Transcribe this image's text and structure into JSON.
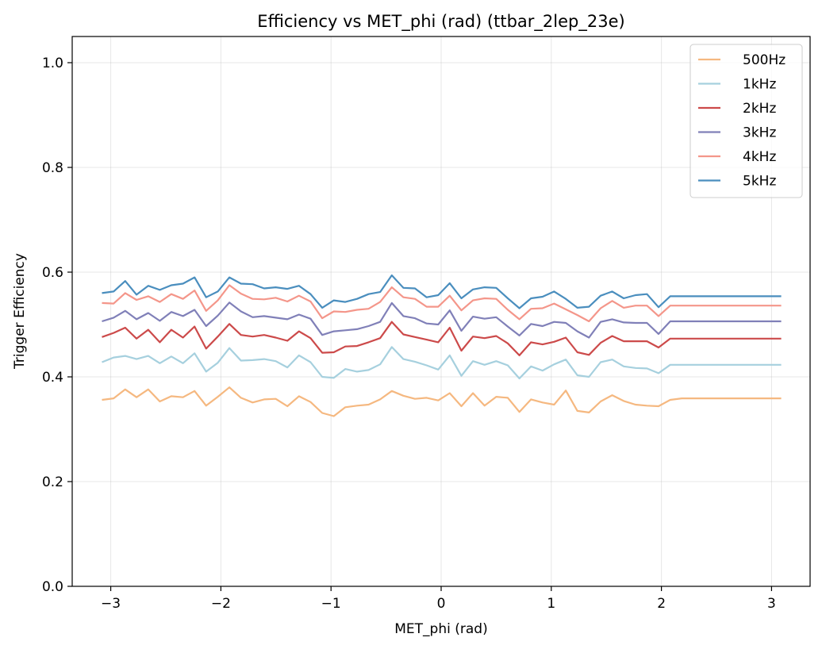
{
  "chart_data": {
    "type": "line",
    "title": "Efficiency vs MET_phi (rad) (ttbar_2lep_23e)",
    "xlabel": "MET_phi (rad)",
    "ylabel": "Trigger Efficiency",
    "xlim": [
      -3.35,
      3.35
    ],
    "ylim": [
      0.0,
      1.05
    ],
    "xticks": [
      -3,
      -2,
      -1,
      0,
      1,
      2,
      3
    ],
    "xtick_labels": [
      "−3",
      "−2",
      "−1",
      "0",
      "1",
      "2",
      "3"
    ],
    "yticks": [
      0.0,
      0.2,
      0.4,
      0.6,
      0.8,
      1.0
    ],
    "ytick_labels": [
      "0.0",
      "0.2",
      "0.4",
      "0.6",
      "0.8",
      "1.0"
    ],
    "grid": true,
    "legend_position": "top-right",
    "x": [
      -3.08,
      -2.974,
      -2.869,
      -2.766,
      -2.66,
      -2.555,
      -2.45,
      -2.344,
      -2.239,
      -2.134,
      -2.028,
      -1.923,
      -1.818,
      -1.712,
      -1.607,
      -1.502,
      -1.396,
      -1.291,
      -1.186,
      -1.08,
      -0.975,
      -0.87,
      -0.764,
      -0.659,
      -0.554,
      -0.448,
      -0.343,
      -0.238,
      -0.132,
      -0.027,
      0.078,
      0.184,
      0.289,
      0.394,
      0.5,
      0.605,
      0.71,
      0.816,
      0.921,
      1.026,
      1.132,
      1.237,
      1.342,
      1.448,
      1.553,
      1.658,
      1.764,
      1.869,
      1.974,
      2.08,
      2.185,
      2.29,
      2.396,
      2.501,
      2.606,
      2.712,
      2.817,
      2.922,
      3.028,
      3.088
    ],
    "series": [
      {
        "name": "500Hz",
        "color": "#f5b880",
        "values": [
          0.356,
          0.359,
          0.376,
          0.361,
          0.376,
          0.353,
          0.363,
          0.361,
          0.373,
          0.345,
          0.362,
          0.38,
          0.36,
          0.351,
          0.357,
          0.358,
          0.344,
          0.363,
          0.352,
          0.331,
          0.325,
          0.342,
          0.345,
          0.347,
          0.357,
          0.373,
          0.364,
          0.358,
          0.36,
          0.355,
          0.369,
          0.344,
          0.369,
          0.345,
          0.362,
          0.36,
          0.333,
          0.357,
          0.351,
          0.347,
          0.374,
          0.335,
          0.332,
          0.353,
          0.365,
          0.354,
          0.347,
          0.345,
          0.344,
          0.356,
          0.359,
          0.359,
          0.359,
          0.359,
          0.359,
          0.359,
          0.359,
          0.359,
          0.359,
          0.359
        ]
      },
      {
        "name": "1kHz",
        "color": "#a6d0de",
        "values": [
          0.428,
          0.437,
          0.44,
          0.434,
          0.44,
          0.426,
          0.439,
          0.426,
          0.445,
          0.41,
          0.427,
          0.455,
          0.431,
          0.432,
          0.434,
          0.43,
          0.418,
          0.441,
          0.428,
          0.4,
          0.398,
          0.415,
          0.41,
          0.413,
          0.424,
          0.457,
          0.434,
          0.429,
          0.422,
          0.414,
          0.441,
          0.402,
          0.43,
          0.423,
          0.43,
          0.422,
          0.397,
          0.42,
          0.412,
          0.424,
          0.433,
          0.403,
          0.4,
          0.428,
          0.433,
          0.42,
          0.417,
          0.416,
          0.407,
          0.423,
          0.423,
          0.423,
          0.423,
          0.423,
          0.423,
          0.423,
          0.423,
          0.423,
          0.423,
          0.423
        ]
      },
      {
        "name": "2kHz",
        "color": "#cc4a4a",
        "values": [
          0.476,
          0.484,
          0.494,
          0.473,
          0.49,
          0.466,
          0.49,
          0.475,
          0.496,
          0.454,
          0.477,
          0.501,
          0.48,
          0.477,
          0.48,
          0.475,
          0.469,
          0.487,
          0.474,
          0.446,
          0.447,
          0.458,
          0.459,
          0.466,
          0.474,
          0.505,
          0.481,
          0.476,
          0.471,
          0.466,
          0.494,
          0.45,
          0.477,
          0.474,
          0.478,
          0.464,
          0.441,
          0.466,
          0.462,
          0.467,
          0.475,
          0.447,
          0.442,
          0.465,
          0.478,
          0.468,
          0.468,
          0.468,
          0.456,
          0.473,
          0.473,
          0.473,
          0.473,
          0.473,
          0.473,
          0.473,
          0.473,
          0.473,
          0.473,
          0.473
        ]
      },
      {
        "name": "3kHz",
        "color": "#8080b8",
        "values": [
          0.506,
          0.513,
          0.526,
          0.51,
          0.522,
          0.507,
          0.524,
          0.516,
          0.528,
          0.497,
          0.517,
          0.542,
          0.525,
          0.514,
          0.516,
          0.513,
          0.51,
          0.519,
          0.511,
          0.48,
          0.487,
          0.489,
          0.491,
          0.497,
          0.505,
          0.541,
          0.516,
          0.512,
          0.502,
          0.5,
          0.527,
          0.488,
          0.515,
          0.511,
          0.514,
          0.496,
          0.479,
          0.501,
          0.497,
          0.505,
          0.503,
          0.487,
          0.475,
          0.505,
          0.51,
          0.504,
          0.503,
          0.503,
          0.482,
          0.506,
          0.506,
          0.506,
          0.506,
          0.506,
          0.506,
          0.506,
          0.506,
          0.506,
          0.506,
          0.506
        ]
      },
      {
        "name": "4kHz",
        "color": "#f4968a",
        "values": [
          0.541,
          0.54,
          0.56,
          0.547,
          0.554,
          0.543,
          0.558,
          0.549,
          0.565,
          0.526,
          0.546,
          0.575,
          0.559,
          0.549,
          0.548,
          0.551,
          0.544,
          0.555,
          0.544,
          0.512,
          0.525,
          0.524,
          0.528,
          0.53,
          0.543,
          0.571,
          0.552,
          0.549,
          0.534,
          0.534,
          0.555,
          0.527,
          0.546,
          0.55,
          0.549,
          0.528,
          0.51,
          0.53,
          0.531,
          0.54,
          0.529,
          0.518,
          0.506,
          0.531,
          0.545,
          0.532,
          0.536,
          0.536,
          0.516,
          0.536,
          0.536,
          0.536,
          0.536,
          0.536,
          0.536,
          0.536,
          0.536,
          0.536,
          0.536,
          0.536
        ]
      },
      {
        "name": "5kHz",
        "color": "#4a8ebe",
        "values": [
          0.56,
          0.563,
          0.583,
          0.557,
          0.574,
          0.566,
          0.575,
          0.578,
          0.59,
          0.552,
          0.563,
          0.59,
          0.578,
          0.577,
          0.569,
          0.571,
          0.568,
          0.574,
          0.558,
          0.532,
          0.546,
          0.543,
          0.549,
          0.558,
          0.562,
          0.594,
          0.57,
          0.569,
          0.552,
          0.556,
          0.579,
          0.55,
          0.567,
          0.571,
          0.57,
          0.55,
          0.531,
          0.55,
          0.553,
          0.563,
          0.549,
          0.532,
          0.534,
          0.555,
          0.563,
          0.55,
          0.556,
          0.558,
          0.533,
          0.554,
          0.554,
          0.554,
          0.554,
          0.554,
          0.554,
          0.554,
          0.554,
          0.554,
          0.554,
          0.554
        ]
      }
    ]
  }
}
